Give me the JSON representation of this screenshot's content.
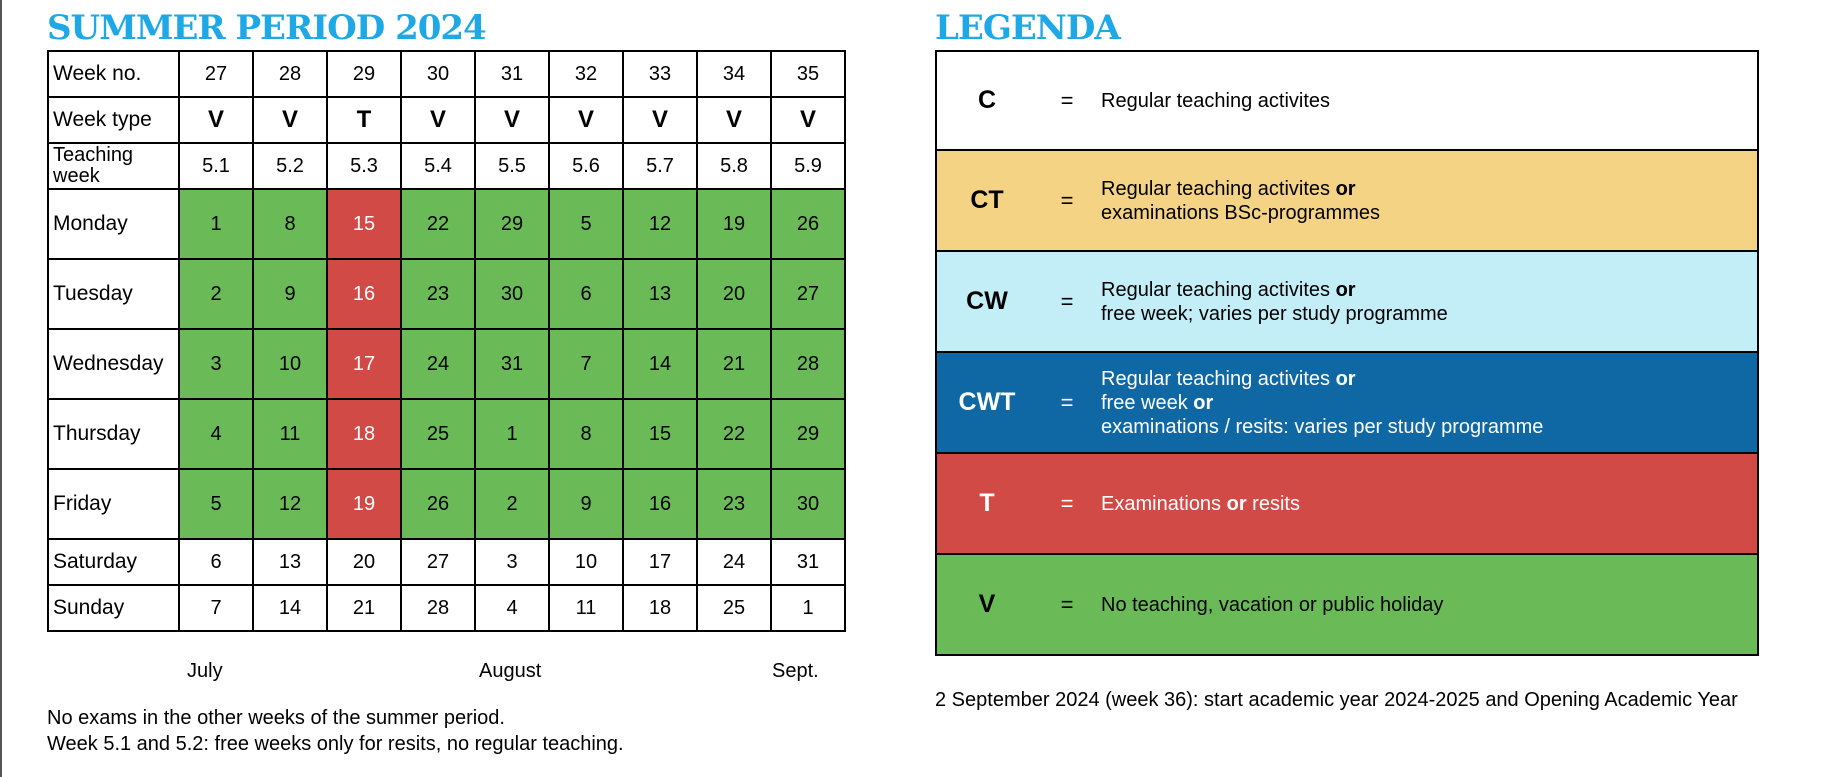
{
  "calendar": {
    "title": "SUMMER PERIOD 2024",
    "labels": {
      "week_no": "Week no.",
      "week_type": "Week type",
      "teaching_week": "Teaching week"
    },
    "week_numbers": [
      "27",
      "28",
      "29",
      "30",
      "31",
      "32",
      "33",
      "34",
      "35"
    ],
    "week_types": [
      "V",
      "V",
      "T",
      "V",
      "V",
      "V",
      "V",
      "V",
      "V"
    ],
    "teaching_weeks": [
      "5.1",
      "5.2",
      "5.3",
      "5.4",
      "5.5",
      "5.6",
      "5.7",
      "5.8",
      "5.9"
    ],
    "days": [
      {
        "name": "Monday",
        "dates": [
          "1",
          "8",
          "15",
          "22",
          "29",
          "5",
          "12",
          "19",
          "26"
        ]
      },
      {
        "name": "Tuesday",
        "dates": [
          "2",
          "9",
          "16",
          "23",
          "30",
          "6",
          "13",
          "20",
          "27"
        ]
      },
      {
        "name": "Wednesday",
        "dates": [
          "3",
          "10",
          "17",
          "24",
          "31",
          "7",
          "14",
          "21",
          "28"
        ]
      },
      {
        "name": "Thursday",
        "dates": [
          "4",
          "11",
          "18",
          "25",
          "1",
          "8",
          "15",
          "22",
          "29"
        ]
      },
      {
        "name": "Friday",
        "dates": [
          "5",
          "12",
          "19",
          "26",
          "2",
          "9",
          "16",
          "23",
          "30"
        ]
      },
      {
        "name": "Saturday",
        "dates": [
          "6",
          "13",
          "20",
          "27",
          "3",
          "10",
          "17",
          "24",
          "31"
        ]
      },
      {
        "name": "Sunday",
        "dates": [
          "7",
          "14",
          "21",
          "28",
          "4",
          "11",
          "18",
          "25",
          "1"
        ]
      }
    ],
    "months": {
      "july": "July",
      "august": "August",
      "september": "Sept."
    },
    "notes": [
      "No exams in the other weeks of the summer period.",
      "Week 5.1 and 5.2: free weeks only for resits, no regular teaching."
    ],
    "colors": {
      "vacation": "#6abb58",
      "exam": "#d24a46"
    }
  },
  "legend": {
    "title": "LEGENDA",
    "equals": "=",
    "items": [
      {
        "code": "C",
        "color": "#ffffff",
        "text": "Regular teaching activites"
      },
      {
        "code": "CT",
        "color": "#f5d384",
        "text1": "Regular teaching activites ",
        "or1": "or",
        "text2": "examinations BSc-programmes"
      },
      {
        "code": "CW",
        "color": "#c4eef7",
        "text1": "Regular teaching activites ",
        "or1": "or",
        "text2": "free week; varies per study programme"
      },
      {
        "code": "CWT",
        "color": "#0f67a4",
        "text1": "Regular teaching activites ",
        "or1": "or",
        "text2": "free week ",
        "or2": "or",
        "text3": "examinations / resits: varies per study programme"
      },
      {
        "code": "T",
        "color": "#d24a46",
        "text1": "Examinations ",
        "or1": "or",
        "text2": " resits"
      },
      {
        "code": "V",
        "color": "#6abb58",
        "text": "No teaching, vacation or public holiday"
      }
    ],
    "footnote": "2 September 2024 (week 36): start academic year 2024-2025 and Opening Academic Year"
  }
}
